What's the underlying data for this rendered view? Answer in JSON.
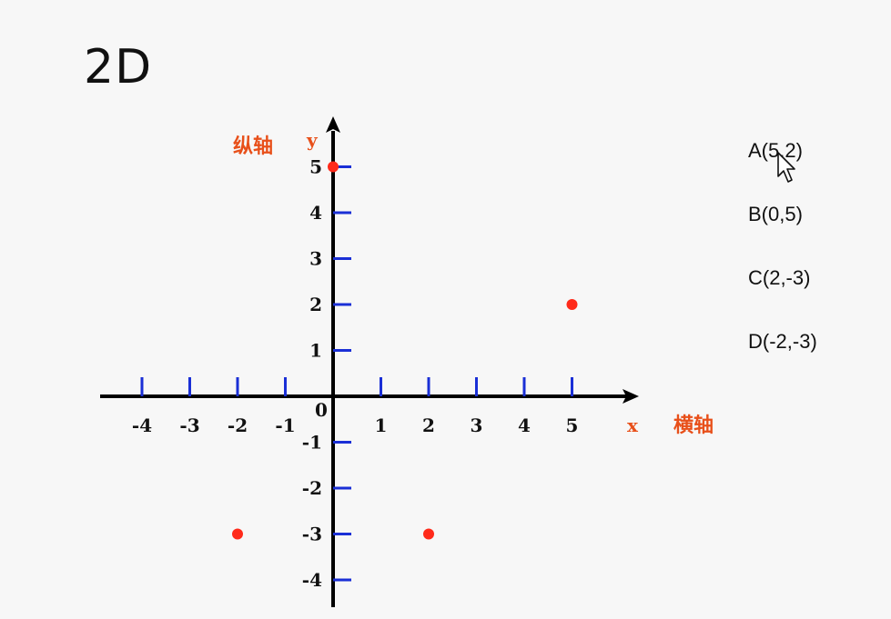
{
  "slide": {
    "title": "2D"
  },
  "colors": {
    "axis": "#000000",
    "tick": "#1a2fd6",
    "point": "#ff2a1a",
    "label_accent": "#e8501a"
  },
  "chart_data": {
    "type": "scatter",
    "xlabel": "横轴",
    "ylabel": "纵轴",
    "x_axis_letter": "x",
    "y_axis_letter": "y",
    "origin_label": "0",
    "xlim": [
      -4,
      5
    ],
    "ylim": [
      -4,
      5
    ],
    "x_ticks": [
      -4,
      -3,
      -2,
      -1,
      1,
      2,
      3,
      4,
      5
    ],
    "y_ticks": [
      -4,
      -3,
      -2,
      -1,
      1,
      2,
      3,
      4,
      5
    ],
    "points": [
      {
        "label": "A(5,2)",
        "x": 5,
        "y": 2
      },
      {
        "label": "B(0,5)",
        "x": 0,
        "y": 5
      },
      {
        "label": "C(2,-3)",
        "x": 2,
        "y": -3
      },
      {
        "label": "D(-2,-3)",
        "x": -2,
        "y": -3
      }
    ]
  }
}
